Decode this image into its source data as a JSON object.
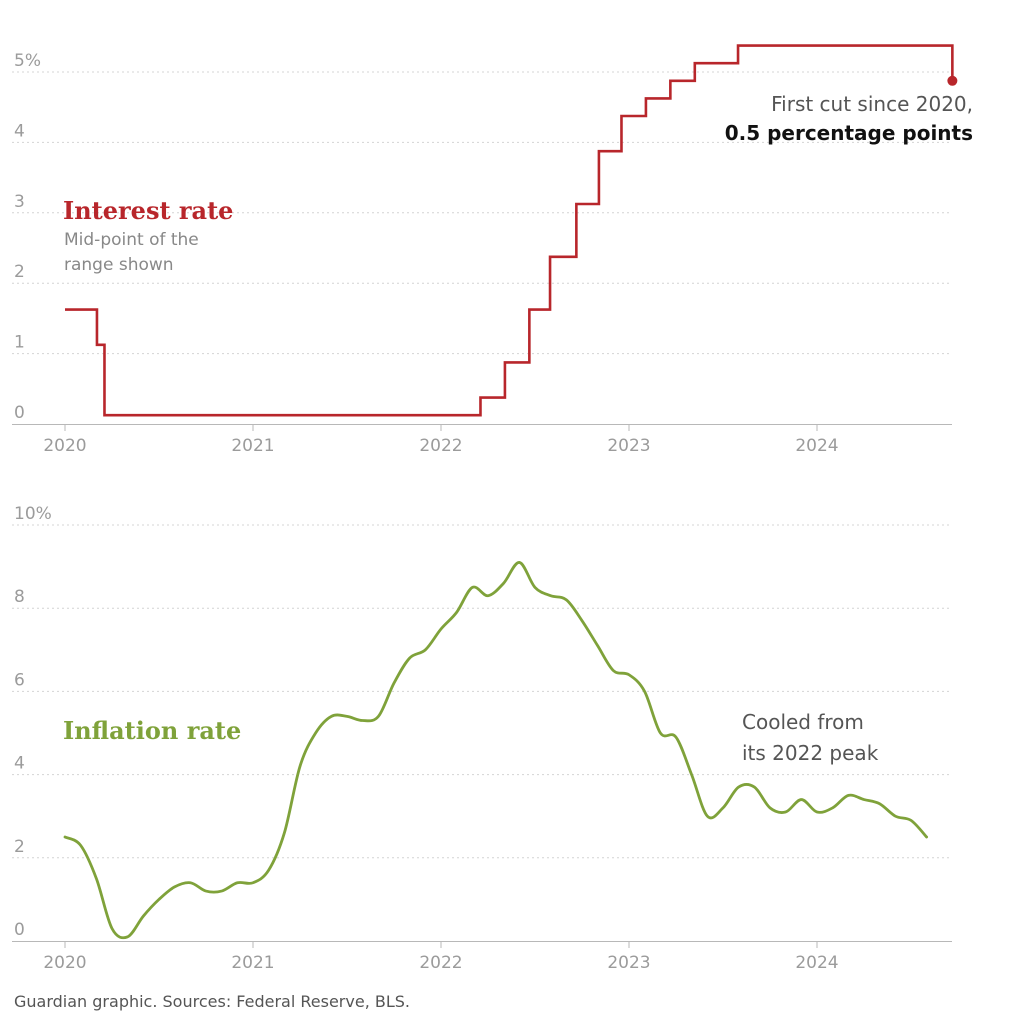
{
  "chart_data": [
    {
      "type": "line",
      "title": "Interest rate",
      "subtitle_lines": [
        "Mid-point of the",
        "range shown"
      ],
      "y_unit_label": "5%",
      "y_ticks": [
        "0",
        "1",
        "2",
        "3",
        "4",
        "5%"
      ],
      "ylim": [
        0,
        5
      ],
      "x_ticks": [
        "2020",
        "2021",
        "2022",
        "2023",
        "2024"
      ],
      "xlim": [
        2020,
        2024.75
      ],
      "step": true,
      "series": [
        {
          "name": "Interest rate",
          "color": "#b8262b",
          "x": [
            2020.0,
            2020.17,
            2020.21,
            2022.21,
            2022.34,
            2022.47,
            2022.58,
            2022.72,
            2022.84,
            2022.96,
            2023.09,
            2023.22,
            2023.35,
            2023.58,
            2024.72
          ],
          "y": [
            1.625,
            1.125,
            0.125,
            0.375,
            0.875,
            1.625,
            2.375,
            3.125,
            3.875,
            4.375,
            4.625,
            4.875,
            5.125,
            5.375,
            4.875
          ]
        }
      ],
      "annotation_lines": [
        "First cut since 2020,",
        "0.5 percentage points"
      ],
      "end_marker": {
        "x": 2024.72,
        "y": 4.875
      }
    },
    {
      "type": "line",
      "title": "Inflation rate",
      "y_unit_label": "10%",
      "y_ticks": [
        "0",
        "2",
        "4",
        "6",
        "8",
        "10%"
      ],
      "ylim": [
        0,
        10
      ],
      "x_ticks": [
        "2020",
        "2021",
        "2022",
        "2023",
        "2024"
      ],
      "xlim": [
        2020,
        2024.75
      ],
      "series": [
        {
          "name": "Inflation rate",
          "color": "#7fa23a",
          "x": [
            2020.0,
            2020.083,
            2020.167,
            2020.25,
            2020.333,
            2020.417,
            2020.5,
            2020.583,
            2020.667,
            2020.75,
            2020.833,
            2020.917,
            2021.0,
            2021.083,
            2021.167,
            2021.25,
            2021.333,
            2021.417,
            2021.5,
            2021.583,
            2021.667,
            2021.75,
            2021.833,
            2021.917,
            2022.0,
            2022.083,
            2022.167,
            2022.25,
            2022.333,
            2022.417,
            2022.5,
            2022.583,
            2022.667,
            2022.75,
            2022.833,
            2022.917,
            2023.0,
            2023.083,
            2023.167,
            2023.25,
            2023.333,
            2023.417,
            2023.5,
            2023.583,
            2023.667,
            2023.75,
            2023.833,
            2023.917,
            2024.0,
            2024.083,
            2024.167,
            2024.25,
            2024.333,
            2024.417,
            2024.5,
            2024.583
          ],
          "y": [
            2.5,
            2.3,
            1.5,
            0.3,
            0.1,
            0.6,
            1.0,
            1.3,
            1.4,
            1.2,
            1.2,
            1.4,
            1.4,
            1.7,
            2.6,
            4.2,
            5.0,
            5.4,
            5.4,
            5.3,
            5.4,
            6.2,
            6.8,
            7.0,
            7.5,
            7.9,
            8.5,
            8.3,
            8.6,
            9.1,
            8.5,
            8.3,
            8.2,
            7.7,
            7.1,
            6.5,
            6.4,
            6.0,
            5.0,
            4.9,
            4.0,
            3.0,
            3.2,
            3.7,
            3.7,
            3.2,
            3.1,
            3.4,
            3.1,
            3.2,
            3.5,
            3.4,
            3.3,
            3.0,
            2.9,
            2.5
          ]
        }
      ],
      "annotation_lines": [
        "Cooled from",
        "its 2022 peak"
      ]
    }
  ],
  "source": "Guardian graphic. Sources: Federal Reserve, BLS."
}
